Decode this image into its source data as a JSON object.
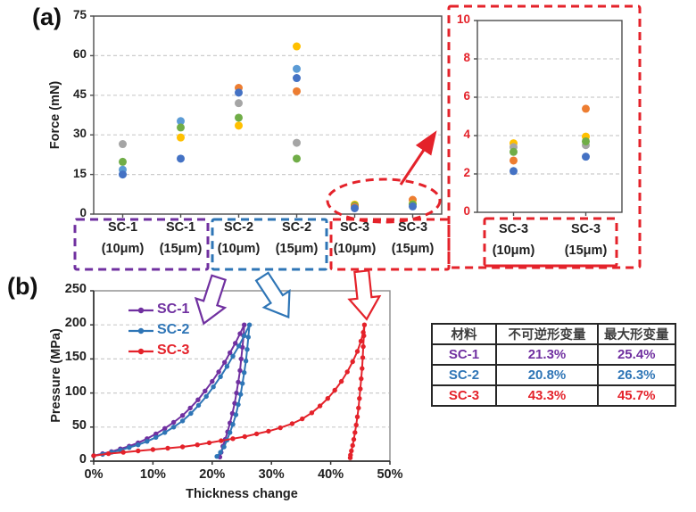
{
  "panel_a_label": "(a)",
  "panel_b_label": "(b)",
  "colors": {
    "series": {
      "blue": "#4472C4",
      "orange": "#ED7D31",
      "gray": "#A5A5A5",
      "yellow": "#FFC000",
      "lightblue": "#5B9BD5",
      "green": "#70AD47"
    },
    "accents": {
      "purple": "#7030A0",
      "blue": "#2E75B6",
      "red": "#E4222A"
    },
    "grid": "#cccccc",
    "border": "#4d4d4d"
  },
  "chart_data": [
    {
      "id": "force-scatter",
      "type": "scatter",
      "title": "",
      "xlabel": "",
      "ylabel": "Force (mN)",
      "ylim": [
        0,
        75
      ],
      "yticks": [
        0,
        15,
        30,
        45,
        60,
        75
      ],
      "grid": "horizontal-dashed",
      "categories": [
        {
          "line1": "SC-1",
          "line2": "(10μm)",
          "points": [
            {
              "series": "gray",
              "y": 26.5
            },
            {
              "series": "green",
              "y": 19.8
            },
            {
              "series": "lightblue",
              "y": 16.8
            },
            {
              "series": "blue",
              "y": 15
            }
          ]
        },
        {
          "line1": "SC-1",
          "line2": "(15μm)",
          "points": [
            {
              "series": "lightblue",
              "y": 35.2
            },
            {
              "series": "green",
              "y": 32.8
            },
            {
              "series": "yellow",
              "y": 29
            },
            {
              "series": "blue",
              "y": 21
            }
          ]
        },
        {
          "line1": "SC-2",
          "line2": "(10μm)",
          "points": [
            {
              "series": "orange",
              "y": 47.8
            },
            {
              "series": "blue",
              "y": 46
            },
            {
              "series": "gray",
              "y": 42
            },
            {
              "series": "green",
              "y": 36.5
            },
            {
              "series": "yellow",
              "y": 33.5
            }
          ]
        },
        {
          "line1": "SC-2",
          "line2": "(15μm)",
          "points": [
            {
              "series": "yellow",
              "y": 63.5
            },
            {
              "series": "lightblue",
              "y": 55
            },
            {
              "series": "blue",
              "y": 51.5
            },
            {
              "series": "orange",
              "y": 46.5
            },
            {
              "series": "gray",
              "y": 27
            },
            {
              "series": "green",
              "y": 21
            }
          ]
        },
        {
          "line1": "SC-3",
          "line2": "(10μm)",
          "points": [
            {
              "series": "yellow",
              "y": 3.6
            },
            {
              "series": "green",
              "y": 3.2
            },
            {
              "series": "orange",
              "y": 2.7
            },
            {
              "series": "blue",
              "y": 2.2
            }
          ]
        },
        {
          "line1": "SC-3",
          "line2": "(15μm)",
          "points": [
            {
              "series": "orange",
              "y": 5.4
            },
            {
              "series": "yellow",
              "y": 3.9
            },
            {
              "series": "green",
              "y": 3.7
            },
            {
              "series": "blue",
              "y": 2.9
            }
          ]
        }
      ]
    },
    {
      "id": "force-scatter-inset",
      "type": "scatter",
      "title": "",
      "xlabel": "",
      "ylabel": "",
      "ylim": [
        0,
        10
      ],
      "yticks": [
        0,
        2,
        4,
        6,
        8,
        10
      ],
      "grid": "horizontal-dashed",
      "categories": [
        {
          "line1": "SC-3",
          "line2": "(10μm)",
          "points": [
            {
              "series": "yellow",
              "y": 3.6
            },
            {
              "series": "gray",
              "y": 3.4
            },
            {
              "series": "green",
              "y": 3.15
            },
            {
              "series": "orange",
              "y": 2.7
            },
            {
              "series": "blue",
              "y": 2.15
            }
          ]
        },
        {
          "line1": "SC-3",
          "line2": "(15μm)",
          "points": [
            {
              "series": "orange",
              "y": 5.4
            },
            {
              "series": "yellow",
              "y": 3.95
            },
            {
              "series": "gray",
              "y": 3.5
            },
            {
              "series": "green",
              "y": 3.7
            },
            {
              "series": "blue",
              "y": 2.9
            }
          ]
        }
      ]
    },
    {
      "id": "pressure-curves",
      "type": "line",
      "title": "",
      "xlabel": "Thickness change",
      "ylabel": "Pressure (MPa)",
      "xlim": [
        0,
        50
      ],
      "ylim": [
        0,
        250
      ],
      "xticks": [
        "0%",
        "10%",
        "20%",
        "30%",
        "40%",
        "50%"
      ],
      "yticks": [
        0,
        50,
        100,
        150,
        200,
        250
      ],
      "grid": "horizontal-dashed",
      "legend_position": "top-left",
      "series": [
        {
          "name": "SC-1",
          "color_key": "purple",
          "points": [
            [
              0,
              8
            ],
            [
              1.5,
              11
            ],
            [
              3,
              14
            ],
            [
              4.5,
              18
            ],
            [
              6,
              22
            ],
            [
              7.5,
              27
            ],
            [
              9,
              33
            ],
            [
              10.5,
              40
            ],
            [
              12,
              48
            ],
            [
              13.5,
              57
            ],
            [
              15,
              67
            ],
            [
              16.3,
              78
            ],
            [
              17.6,
              90
            ],
            [
              18.8,
              103
            ],
            [
              20,
              117
            ],
            [
              21.1,
              131
            ],
            [
              22.1,
              145
            ],
            [
              23,
              159
            ],
            [
              23.9,
              173
            ],
            [
              24.7,
              187
            ],
            [
              25.4,
              200
            ],
            [
              25.3,
              184
            ],
            [
              25.1,
              167
            ],
            [
              24.9,
              150
            ],
            [
              24.7,
              133
            ],
            [
              24.4,
              116
            ],
            [
              24.1,
              100
            ],
            [
              23.8,
              85
            ],
            [
              23.4,
              70
            ],
            [
              23,
              56
            ],
            [
              22.6,
              43
            ],
            [
              22.2,
              32
            ],
            [
              21.8,
              22
            ],
            [
              21.5,
              13
            ],
            [
              21.3,
              6
            ]
          ]
        },
        {
          "name": "SC-2",
          "color_key": "blue",
          "points": [
            [
              0,
              8
            ],
            [
              1.5,
              10
            ],
            [
              3,
              13
            ],
            [
              4.5,
              16
            ],
            [
              6,
              20
            ],
            [
              7.5,
              24
            ],
            [
              9,
              29
            ],
            [
              10.5,
              35
            ],
            [
              12,
              42
            ],
            [
              13.5,
              50
            ],
            [
              15,
              59
            ],
            [
              16.4,
              70
            ],
            [
              17.7,
              82
            ],
            [
              19,
              95
            ],
            [
              20.2,
              109
            ],
            [
              21.4,
              124
            ],
            [
              22.5,
              139
            ],
            [
              23.5,
              154
            ],
            [
              24.5,
              169
            ],
            [
              25.4,
              184
            ],
            [
              26.3,
              200
            ],
            [
              26.1,
              182
            ],
            [
              25.9,
              164
            ],
            [
              25.7,
              147
            ],
            [
              25.4,
              130
            ],
            [
              25.1,
              114
            ],
            [
              24.8,
              98
            ],
            [
              24.4,
              83
            ],
            [
              24,
              68
            ],
            [
              23.5,
              54
            ],
            [
              23,
              42
            ],
            [
              22.5,
              31
            ],
            [
              22,
              21
            ],
            [
              21.4,
              13
            ],
            [
              20.8,
              7
            ]
          ]
        },
        {
          "name": "SC-3",
          "color_key": "red",
          "points": [
            [
              0,
              8
            ],
            [
              2.5,
              11
            ],
            [
              5,
              13
            ],
            [
              7.5,
              15
            ],
            [
              10,
              17
            ],
            [
              12.5,
              19
            ],
            [
              15,
              21
            ],
            [
              17.5,
              24
            ],
            [
              19.5,
              27
            ],
            [
              21.5,
              30
            ],
            [
              23.5,
              33
            ],
            [
              25.5,
              36
            ],
            [
              27.5,
              40
            ],
            [
              29.5,
              44
            ],
            [
              31.5,
              49
            ],
            [
              33.5,
              55
            ],
            [
              35.2,
              62
            ],
            [
              36.8,
              71
            ],
            [
              38.2,
              81
            ],
            [
              39.5,
              92
            ],
            [
              40.7,
              104
            ],
            [
              41.8,
              117
            ],
            [
              42.8,
              131
            ],
            [
              43.7,
              146
            ],
            [
              44.5,
              161
            ],
            [
              45.1,
              176
            ],
            [
              45.5,
              189
            ],
            [
              45.7,
              200
            ],
            [
              45.6,
              184
            ],
            [
              45.5,
              168
            ],
            [
              45.4,
              152
            ],
            [
              45.3,
              136
            ],
            [
              45.15,
              121
            ],
            [
              45,
              106
            ],
            [
              44.85,
              92
            ],
            [
              44.7,
              78
            ],
            [
              44.5,
              65
            ],
            [
              44.3,
              53
            ],
            [
              44.1,
              42
            ],
            [
              43.9,
              32
            ],
            [
              43.7,
              23
            ],
            [
              43.5,
              15
            ],
            [
              43.35,
              9
            ],
            [
              43.3,
              5
            ]
          ]
        }
      ]
    }
  ],
  "table": {
    "headers": [
      "材料",
      "不可逆形变量",
      "最大形变量"
    ],
    "rows": [
      {
        "material": "SC-1",
        "irreversible": "21.3%",
        "max": "25.4%",
        "color_key": "purple"
      },
      {
        "material": "SC-2",
        "irreversible": "20.8%",
        "max": "26.3%",
        "color_key": "blue"
      },
      {
        "material": "SC-3",
        "irreversible": "43.3%",
        "max": "45.7%",
        "color_key": "red"
      }
    ]
  }
}
